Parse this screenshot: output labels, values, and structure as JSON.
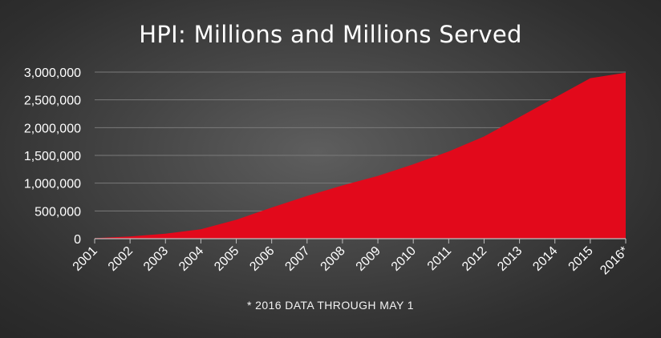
{
  "chart_data": {
    "type": "area",
    "title": "HPI: Millions and Millions Served",
    "note": "* 2016 DATA THROUGH MAY 1",
    "xlabel": "",
    "ylabel": "",
    "categories": [
      "2001",
      "2002",
      "2003",
      "2004",
      "2005",
      "2006",
      "2007",
      "2008",
      "2009",
      "2010",
      "2011",
      "2012",
      "2013",
      "2014",
      "2015",
      "2016*"
    ],
    "values": [
      10000,
      40000,
      90000,
      170000,
      340000,
      560000,
      770000,
      960000,
      1130000,
      1340000,
      1570000,
      1840000,
      2190000,
      2540000,
      2890000,
      2990000
    ],
    "ylim": [
      0,
      3000000
    ],
    "yticks": [
      0,
      500000,
      1000000,
      1500000,
      2000000,
      2500000,
      3000000
    ],
    "ytick_labels": [
      "0",
      "500,000",
      "1,000,000",
      "1,500,000",
      "2,000,000",
      "2,500,000",
      "3,000,000"
    ],
    "grid": true,
    "legend": "none",
    "colors": {
      "area": "#e2091b",
      "grid": "#7a7a7a",
      "axis": "#bfbfbf",
      "text": "#ffffff"
    }
  }
}
